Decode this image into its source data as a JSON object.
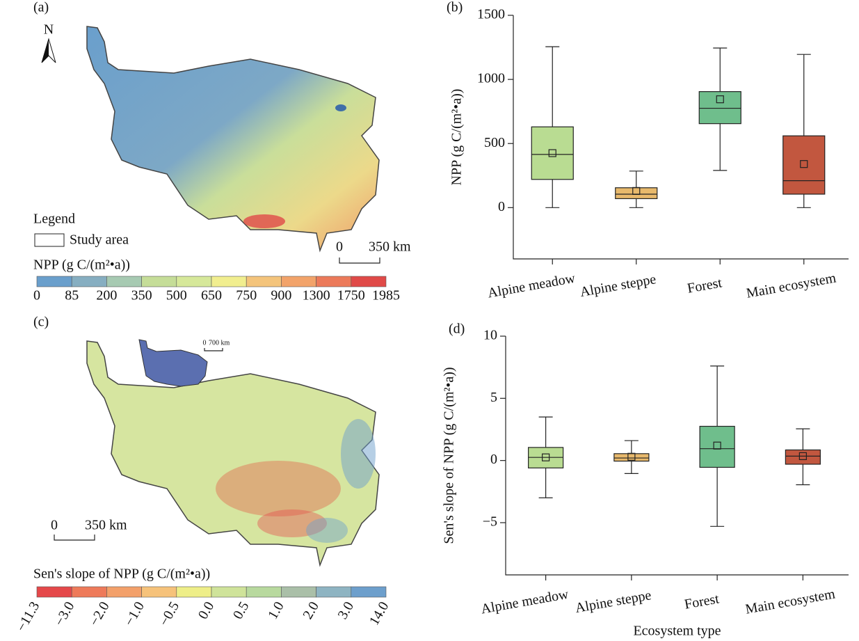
{
  "chart_data": [
    {
      "type": "box",
      "panel_label": "(b)",
      "y_label": "NPP (g C/(m²•a))",
      "categories": [
        "Alpine meadow",
        "Alpine steppe",
        "Forest",
        "Main ecosystem"
      ],
      "colors": [
        "#b9dc92",
        "#e8b96c",
        "#6fbe8c",
        "#c2573f"
      ],
      "boxes": [
        {
          "min": 0,
          "q1": 220,
          "median": 415,
          "q3": 630,
          "max": 1255,
          "mean": 425
        },
        {
          "min": 0,
          "q1": 70,
          "median": 105,
          "q3": 155,
          "max": 285,
          "mean": 130
        },
        {
          "min": 290,
          "q1": 655,
          "median": 775,
          "q3": 905,
          "max": 1245,
          "mean": 845
        },
        {
          "min": 0,
          "q1": 105,
          "median": 210,
          "q3": 560,
          "max": 1195,
          "mean": 340
        }
      ],
      "ylim": [
        -400,
        1500
      ],
      "yticks": [
        0,
        500,
        1000,
        1500
      ]
    },
    {
      "type": "box",
      "panel_label": "(d)",
      "y_label": "Sen's slope of NPP (g C/(m²•a))",
      "x_label": "Ecosystem type",
      "categories": [
        "Alpine meadow",
        "Alpine steppe",
        "Forest",
        "Main ecosystem"
      ],
      "colors": [
        "#b9dc92",
        "#e8b96c",
        "#6fbe8c",
        "#c2573f"
      ],
      "boxes": [
        {
          "min": -3,
          "q1": -0.6,
          "median": 0.25,
          "q3": 1.05,
          "max": 3.5,
          "mean": 0.25
        },
        {
          "min": -1.05,
          "q1": -0.05,
          "median": 0.2,
          "q3": 0.55,
          "max": 1.6,
          "mean": 0.3
        },
        {
          "min": -5.3,
          "q1": -0.55,
          "median": 0.95,
          "q3": 2.75,
          "max": 7.6,
          "mean": 1.2
        },
        {
          "min": -1.95,
          "q1": -0.3,
          "median": 0.35,
          "q3": 0.85,
          "max": 2.55,
          "mean": 0.35
        }
      ],
      "ylim": [
        -9.2,
        10
      ],
      "yticks": [
        {
          "value": -5,
          "label": "−5"
        },
        0,
        5,
        10
      ]
    }
  ],
  "map_a": {
    "panel_label": "(a)",
    "north": "N",
    "legend_title": "Legend",
    "study_area": "Study area",
    "scale_start": "0",
    "scale_end": "350 km",
    "colorbar_title": "NPP (g C/(m²•a))",
    "colorbar_colors": [
      "#6a9fcc",
      "#86aec1",
      "#a7cab2",
      "#c5dd98",
      "#d6e89a",
      "#f1ee8f",
      "#f4c47b",
      "#f2a36a",
      "#ec7a5a",
      "#e04a48"
    ],
    "colorbar_labels": [
      "0",
      "85",
      "200",
      "350",
      "500",
      "650",
      "750",
      "900",
      "1300",
      "1750",
      "1985"
    ]
  },
  "map_c": {
    "panel_label": "(c)",
    "scale_start": "0",
    "scale_end": "350 km",
    "inset_scale_start": "0",
    "inset_scale_end": "700 km",
    "colorbar_title": "Sen's slope of NPP (g C/(m²•a))",
    "colorbar_colors": [
      "#e5484a",
      "#ee7a5a",
      "#f3a06a",
      "#f6c27a",
      "#eeee88",
      "#cfe39a",
      "#b8d99e",
      "#aabfa8",
      "#8eb4c2",
      "#6d9fcc"
    ],
    "colorbar_labels": [
      "−11.3",
      "−3.0",
      "−2.0",
      "−1.0",
      "−0.5",
      "0.0",
      "0.5",
      "1.0",
      "2.0",
      "3.0",
      "14.0"
    ]
  }
}
